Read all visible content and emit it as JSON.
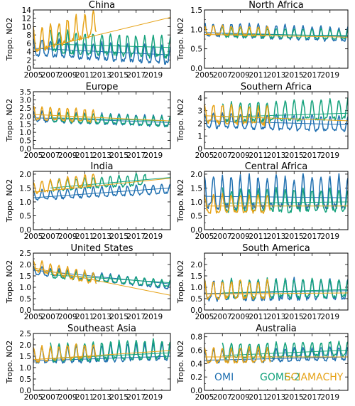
{
  "figure": {
    "ylabel": "Tropo. NO2",
    "legend": [
      {
        "name": "OMI",
        "color": "#1f6fb0"
      },
      {
        "name": "GOME-2",
        "color": "#15a27c"
      },
      {
        "name": "SCIAMACHY",
        "color": "#e6a318"
      }
    ]
  },
  "chart_data": [
    {
      "type": "line",
      "title": "China",
      "ylabel": "Tropo. NO2",
      "xlim": [
        2005,
        2021
      ],
      "ylim": [
        0,
        14
      ],
      "yticks": [
        "0",
        "2",
        "4",
        "6",
        "8",
        "10",
        "12",
        "14"
      ],
      "xticks": [
        "2005",
        "2007",
        "2009",
        "2011",
        "2013",
        "2015",
        "2017",
        "2019"
      ],
      "series": [
        {
          "name": "OMI",
          "start": 2005.0,
          "end": 2021.0,
          "base": 4.5,
          "amp": 2.5,
          "slope": -0.12,
          "trend": [
            [
              2005,
              4.8
            ],
            [
              2021,
              3.2
            ]
          ]
        },
        {
          "name": "GOME-2",
          "start": 2007.0,
          "end": 2021.0,
          "base": 6.0,
          "amp": 3.2,
          "slope": -0.1,
          "trend": [
            [
              2007,
              5.8
            ],
            [
              2021,
              5.0
            ]
          ]
        },
        {
          "name": "SCIAMACHY",
          "start": 2005.0,
          "end": 2012.3,
          "base": 6.0,
          "amp": 3.6,
          "slope": 0.55,
          "trend": [
            [
              2005,
              4.3
            ],
            [
              2021,
              12.2
            ]
          ]
        }
      ]
    },
    {
      "type": "line",
      "title": "North Africa",
      "ylabel": "Tropo. NO2",
      "xlim": [
        2005,
        2021
      ],
      "ylim": [
        0,
        1.5
      ],
      "yticks": [
        "0.0",
        "0.5",
        "1.0",
        "1.5"
      ],
      "xticks": [
        "2005",
        "2007",
        "2009",
        "2011",
        "2013",
        "2015",
        "2017",
        "2019"
      ],
      "series": [
        {
          "name": "OMI",
          "start": 2005.0,
          "end": 2021.0,
          "base": 0.95,
          "amp": 0.22,
          "slope": -0.008,
          "trend": [
            [
              2005,
              0.92
            ],
            [
              2021,
              0.82
            ]
          ]
        },
        {
          "name": "GOME-2",
          "start": 2007.0,
          "end": 2021.0,
          "base": 0.9,
          "amp": 0.15,
          "slope": -0.004,
          "trend": [
            [
              2007,
              0.88
            ],
            [
              2021,
              0.84
            ]
          ]
        },
        {
          "name": "SCIAMACHY",
          "start": 2005.0,
          "end": 2012.3,
          "base": 0.95,
          "amp": 0.15,
          "slope": -0.005,
          "trend": [
            [
              2005,
              0.87
            ],
            [
              2021,
              0.8
            ]
          ]
        }
      ]
    },
    {
      "type": "line",
      "title": "Europe",
      "ylabel": "Tropo. NO2",
      "xlim": [
        2005,
        2021
      ],
      "ylim": [
        0,
        3.5
      ],
      "yticks": [
        "0.0",
        "0.5",
        "1.0",
        "1.5",
        "2.0",
        "2.5",
        "3.0",
        "3.5"
      ],
      "xticks": [
        "2005",
        "2007",
        "2009",
        "2011",
        "2013",
        "2015",
        "2017",
        "2019"
      ],
      "series": [
        {
          "name": "OMI",
          "start": 2005.0,
          "end": 2021.0,
          "base": 1.9,
          "amp": 0.4,
          "slope": -0.02,
          "trend": [
            [
              2005,
              1.9
            ],
            [
              2021,
              1.6
            ]
          ]
        },
        {
          "name": "GOME-2",
          "start": 2007.0,
          "end": 2021.0,
          "base": 1.9,
          "amp": 0.35,
          "slope": -0.02,
          "trend": [
            [
              2007,
              1.9
            ],
            [
              2021,
              1.7
            ]
          ]
        },
        {
          "name": "SCIAMACHY",
          "start": 2005.0,
          "end": 2012.3,
          "base": 2.1,
          "amp": 0.5,
          "slope": -0.03,
          "trend": [
            [
              2005,
              2.1
            ],
            [
              2021,
              1.7
            ]
          ]
        }
      ]
    },
    {
      "type": "line",
      "title": "Southern Africa",
      "ylabel": "Tropo. NO2",
      "xlim": [
        2005,
        2021
      ],
      "ylim": [
        0,
        4.5
      ],
      "yticks": [
        "0",
        "1",
        "2",
        "3",
        "4"
      ],
      "xticks": [
        "2005",
        "2007",
        "2009",
        "2011",
        "2013",
        "2015",
        "2017",
        "2019"
      ],
      "series": [
        {
          "name": "OMI",
          "start": 2005.0,
          "end": 2021.0,
          "base": 2.1,
          "amp": 0.75,
          "slope": -0.02,
          "trend": [
            [
              2005,
              2.2
            ],
            [
              2021,
              1.9
            ]
          ]
        },
        {
          "name": "GOME-2",
          "start": 2007.0,
          "end": 2021.0,
          "base": 2.6,
          "amp": 0.95,
          "slope": 0.02,
          "trend": [
            [
              2007,
              2.5
            ],
            [
              2021,
              2.8
            ]
          ]
        },
        {
          "name": "SCIAMACHY",
          "start": 2005.0,
          "end": 2012.3,
          "base": 2.6,
          "amp": 0.9,
          "slope": -0.03,
          "trend": [
            [
              2005,
              2.6
            ],
            [
              2021,
              2.2
            ]
          ]
        }
      ]
    },
    {
      "type": "line",
      "title": "India",
      "ylabel": "Tropo. NO2",
      "xlim": [
        2005,
        2021
      ],
      "ylim": [
        0,
        2.1
      ],
      "yticks": [
        "0.0",
        "0.5",
        "1.0",
        "1.5",
        "2.0"
      ],
      "xticks": [
        "2005",
        "2007",
        "2009",
        "2011",
        "2013",
        "2015",
        "2017",
        "2019"
      ],
      "series": [
        {
          "name": "OMI",
          "start": 2005.0,
          "end": 2021.0,
          "base": 1.2,
          "amp": 0.22,
          "slope": 0.015,
          "trend": [
            [
              2005,
              1.15
            ],
            [
              2021,
              1.5
            ]
          ]
        },
        {
          "name": "GOME-2",
          "start": 2007.0,
          "end": 2018.2,
          "base": 1.5,
          "amp": 0.25,
          "slope": 0.02,
          "trend": [
            [
              2007,
              1.5
            ],
            [
              2021,
              1.88
            ]
          ]
        },
        {
          "name": "SCIAMACHY",
          "start": 2005.0,
          "end": 2012.3,
          "base": 1.45,
          "amp": 0.25,
          "slope": 0.045,
          "trend": [
            [
              2005,
              1.35
            ],
            [
              2021,
              1.85
            ]
          ]
        }
      ]
    },
    {
      "type": "line",
      "title": "Central Africa",
      "ylabel": "Tropo. NO2",
      "xlim": [
        2005,
        2021
      ],
      "ylim": [
        0,
        2.1
      ],
      "yticks": [
        "0.0",
        "0.5",
        "1.0",
        "1.5",
        "2.0"
      ],
      "xticks": [
        "2005",
        "2007",
        "2009",
        "2011",
        "2013",
        "2015",
        "2017",
        "2019"
      ],
      "series": [
        {
          "name": "OMI",
          "start": 2005.0,
          "end": 2021.0,
          "base": 1.2,
          "amp": 0.7,
          "slope": 0.0,
          "trend": [
            [
              2005,
              1.2
            ],
            [
              2021,
              1.15
            ]
          ]
        },
        {
          "name": "GOME-2",
          "start": 2007.0,
          "end": 2021.0,
          "base": 0.95,
          "amp": 0.5,
          "slope": 0.0,
          "trend": [
            [
              2007,
              0.95
            ],
            [
              2021,
              1.0
            ]
          ]
        },
        {
          "name": "SCIAMACHY",
          "start": 2005.0,
          "end": 2012.3,
          "base": 0.85,
          "amp": 0.4,
          "slope": 0.0,
          "trend": [
            [
              2005,
              0.85
            ],
            [
              2021,
              0.85
            ]
          ]
        }
      ]
    },
    {
      "type": "line",
      "title": "United States",
      "ylabel": "Tropo. NO2",
      "xlim": [
        2005,
        2021
      ],
      "ylim": [
        0,
        2.5
      ],
      "yticks": [
        "0.0",
        "0.5",
        "1.0",
        "1.5",
        "2.0",
        "2.5"
      ],
      "xticks": [
        "2005",
        "2007",
        "2009",
        "2011",
        "2013",
        "2015",
        "2017",
        "2019"
      ],
      "series": [
        {
          "name": "OMI",
          "start": 2005.0,
          "end": 2021.0,
          "base": 1.7,
          "amp": 0.22,
          "slope": -0.04,
          "trend": [
            [
              2005,
              1.75
            ],
            [
              2021,
              1.15
            ]
          ]
        },
        {
          "name": "GOME-2",
          "start": 2007.0,
          "end": 2021.0,
          "base": 1.6,
          "amp": 0.2,
          "slope": -0.03,
          "trend": [
            [
              2007,
              1.55
            ],
            [
              2021,
              1.2
            ]
          ]
        },
        {
          "name": "SCIAMACHY",
          "start": 2005.0,
          "end": 2012.3,
          "base": 1.9,
          "amp": 0.3,
          "slope": -0.08,
          "trend": [
            [
              2005,
              1.85
            ],
            [
              2021,
              0.65
            ]
          ]
        }
      ]
    },
    {
      "type": "line",
      "title": "South America",
      "ylabel": "Tropo. NO2",
      "xlim": [
        2005,
        2021
      ],
      "ylim": [
        0,
        2.5
      ],
      "yticks": [
        "0.0",
        "0.5",
        "1.0",
        "1.5",
        "2.0"
      ],
      "xticks": [
        "2005",
        "2007",
        "2009",
        "2011",
        "2013",
        "2015",
        "2017",
        "2019"
      ],
      "series": [
        {
          "name": "OMI",
          "start": 2005.0,
          "end": 2021.0,
          "base": 0.75,
          "amp": 0.55,
          "slope": 0.005,
          "trend": [
            [
              2005,
              0.72
            ],
            [
              2021,
              0.85
            ]
          ]
        },
        {
          "name": "GOME-2",
          "start": 2007.0,
          "end": 2021.0,
          "base": 0.8,
          "amp": 0.5,
          "slope": 0.005,
          "trend": [
            [
              2007,
              0.75
            ],
            [
              2021,
              0.9
            ]
          ]
        },
        {
          "name": "SCIAMACHY",
          "start": 2005.0,
          "end": 2012.3,
          "base": 0.8,
          "amp": 0.5,
          "slope": 0.0,
          "trend": [
            [
              2005,
              0.7
            ],
            [
              2021,
              0.75
            ]
          ]
        }
      ]
    },
    {
      "type": "line",
      "title": "Southeast Asia",
      "ylabel": "Tropo. NO2",
      "xlim": [
        2005,
        2021
      ],
      "ylim": [
        0,
        2.5
      ],
      "yticks": [
        "0.0",
        "0.5",
        "1.0",
        "1.5",
        "2.0",
        "2.5"
      ],
      "xticks": [
        "2005",
        "2007",
        "2009",
        "2011",
        "2013",
        "2015",
        "2017",
        "2019"
      ],
      "series": [
        {
          "name": "OMI",
          "start": 2005.0,
          "end": 2021.0,
          "base": 1.45,
          "amp": 0.45,
          "slope": 0.01,
          "trend": [
            [
              2005,
              1.3
            ],
            [
              2021,
              1.5
            ]
          ]
        },
        {
          "name": "GOME-2",
          "start": 2007.0,
          "end": 2021.0,
          "base": 1.55,
          "amp": 0.5,
          "slope": 0.01,
          "trend": [
            [
              2007,
              1.4
            ],
            [
              2021,
              1.65
            ]
          ]
        },
        {
          "name": "SCIAMACHY",
          "start": 2005.0,
          "end": 2012.3,
          "base": 1.5,
          "amp": 0.4,
          "slope": 0.02,
          "trend": [
            [
              2005,
              1.35
            ],
            [
              2021,
              1.75
            ]
          ]
        }
      ]
    },
    {
      "type": "line",
      "title": "Australia",
      "ylabel": "Tropo. NO2",
      "xlim": [
        2005,
        2021
      ],
      "ylim": [
        0,
        0.85
      ],
      "yticks": [
        "0.0",
        "0.2",
        "0.4",
        "0.6",
        "0.8"
      ],
      "xticks": [
        "2005",
        "2007",
        "2009",
        "2011",
        "2013",
        "2015",
        "2017",
        "2019"
      ],
      "series": [
        {
          "name": "OMI",
          "start": 2005.0,
          "end": 2021.0,
          "base": 0.48,
          "amp": 0.12,
          "slope": 0.003,
          "trend": [
            [
              2005,
              0.45
            ],
            [
              2021,
              0.5
            ]
          ]
        },
        {
          "name": "GOME-2",
          "start": 2007.0,
          "end": 2021.0,
          "base": 0.55,
          "amp": 0.14,
          "slope": 0.003,
          "trend": [
            [
              2007,
              0.52
            ],
            [
              2021,
              0.6
            ]
          ]
        },
        {
          "name": "SCIAMACHY",
          "start": 2005.0,
          "end": 2012.3,
          "base": 0.5,
          "amp": 0.14,
          "slope": 0.0,
          "trend": [
            [
              2005,
              0.5
            ],
            [
              2021,
              0.5
            ]
          ]
        }
      ]
    }
  ]
}
